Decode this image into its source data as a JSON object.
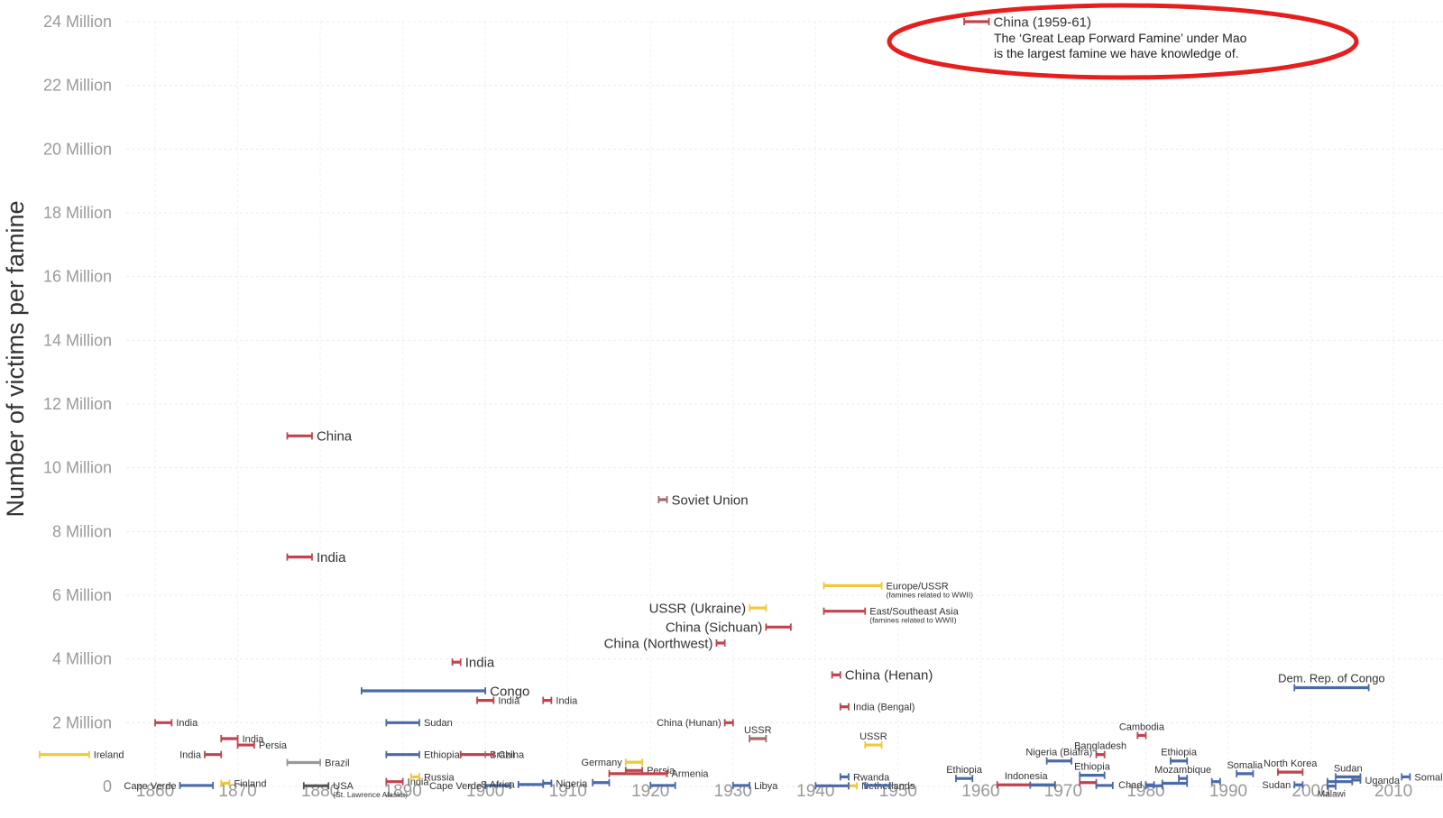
{
  "chart_data": {
    "type": "range",
    "title": "",
    "ylabel": "Number of victims per famine",
    "xlim": [
      1856.5,
      2016
    ],
    "ylim": [
      0,
      24
    ],
    "yticks": [
      {
        "value": 0,
        "label": "0"
      },
      {
        "value": 2,
        "label": "2 Million"
      },
      {
        "value": 4,
        "label": "4 Million"
      },
      {
        "value": 6,
        "label": "6 Million"
      },
      {
        "value": 8,
        "label": "8 Million"
      },
      {
        "value": 10,
        "label": "10 Million"
      },
      {
        "value": 12,
        "label": "12 Million"
      },
      {
        "value": 14,
        "label": "14 Million"
      },
      {
        "value": 16,
        "label": "16 Million"
      },
      {
        "value": 18,
        "label": "18 Million"
      },
      {
        "value": 20,
        "label": "20 Million"
      },
      {
        "value": 22,
        "label": "22 Million"
      },
      {
        "value": 24,
        "label": "24 Million"
      }
    ],
    "xticks": [
      "1860",
      "1870",
      "1880",
      "1890",
      "1900",
      "1910",
      "1920",
      "1930",
      "1940",
      "1950",
      "1960",
      "1970",
      "1980",
      "1990",
      "2000",
      "2010"
    ],
    "grid": true,
    "colors": {
      "red": "#c0444f",
      "blue": "#4a6aa8",
      "yellow": "#f0c93a",
      "gray": "#999999",
      "dark": "#555555",
      "brown": "#a36a6a"
    },
    "famines": [
      {
        "label": "Ireland",
        "start": 1846,
        "end": 1852,
        "value": 1.0,
        "color": "yellow",
        "size": 11
      },
      {
        "label": "India",
        "start": 1860,
        "end": 1862,
        "value": 2.0,
        "color": "red",
        "size": 11
      },
      {
        "label": "India",
        "start": 1868,
        "end": 1870,
        "value": 1.5,
        "color": "red",
        "size": 11
      },
      {
        "label": "Persia",
        "start": 1870,
        "end": 1872,
        "value": 1.3,
        "color": "red",
        "size": 11
      },
      {
        "label": "India",
        "start": 1866,
        "end": 1868,
        "value": 1.0,
        "color": "red",
        "size": 11,
        "anchor": "end"
      },
      {
        "label": "Cape Verde",
        "start": 1863,
        "end": 1867,
        "value": 0.03,
        "color": "blue",
        "size": 11,
        "anchor": "end"
      },
      {
        "label": "Finland",
        "start": 1868,
        "end": 1869,
        "value": 0.1,
        "color": "yellow",
        "size": 11
      },
      {
        "label": "China",
        "start": 1876,
        "end": 1879,
        "value": 11.0,
        "color": "red",
        "size": 15
      },
      {
        "label": "India",
        "start": 1876,
        "end": 1879,
        "value": 7.2,
        "color": "red",
        "size": 15
      },
      {
        "label": "Brazil",
        "start": 1876,
        "end": 1880,
        "value": 0.75,
        "color": "gray",
        "size": 11
      },
      {
        "label": "USA",
        "sublabel": "(St. Lawrence Alaska)",
        "start": 1878,
        "end": 1881,
        "value": 0.02,
        "color": "dark",
        "size": 11
      },
      {
        "label": "Congo",
        "start": 1885,
        "end": 1900,
        "value": 3.0,
        "color": "blue",
        "size": 15
      },
      {
        "label": "Sudan",
        "start": 1888,
        "end": 1892,
        "value": 2.0,
        "color": "blue",
        "size": 11
      },
      {
        "label": "Ethiopia",
        "start": 1888,
        "end": 1892,
        "value": 1.0,
        "color": "blue",
        "size": 11
      },
      {
        "label": "India",
        "start": 1888,
        "end": 1890,
        "value": 0.15,
        "color": "red",
        "size": 11
      },
      {
        "label": "Russia",
        "start": 1891,
        "end": 1892,
        "value": 0.3,
        "color": "yellow",
        "size": 11
      },
      {
        "label": "India",
        "start": 1896,
        "end": 1897,
        "value": 3.9,
        "color": "red",
        "size": 15
      },
      {
        "label": "Brazil",
        "start": 1897,
        "end": 1900,
        "value": 1.0,
        "color": "gray",
        "size": 11
      },
      {
        "label": "China",
        "start": 1897,
        "end": 1901,
        "value": 1.0,
        "color": "red",
        "size": 11
      },
      {
        "label": "India",
        "start": 1899,
        "end": 1901,
        "value": 2.7,
        "color": "red",
        "size": 11
      },
      {
        "label": "India",
        "start": 1907,
        "end": 1908,
        "value": 2.7,
        "color": "red",
        "size": 11
      },
      {
        "label": "Cape Verde",
        "start": 1900,
        "end": 1903,
        "value": 0.03,
        "color": "blue",
        "size": 11,
        "anchor": "end"
      },
      {
        "label": "S Africa",
        "start": 1904,
        "end": 1907,
        "value": 0.06,
        "color": "blue",
        "size": 11,
        "anchor": "end"
      },
      {
        "label": "Nigeria",
        "start": 1907,
        "end": 1908,
        "value": 0.1,
        "color": "blue",
        "size": 11
      },
      {
        "label": "Soviet Union",
        "start": 1921,
        "end": 1922,
        "value": 9.0,
        "color": "brown",
        "size": 15
      },
      {
        "label": "Germany",
        "start": 1917,
        "end": 1919,
        "value": 0.76,
        "color": "yellow",
        "size": 11,
        "anchor": "end"
      },
      {
        "label": "Persia",
        "start": 1917,
        "end": 1919,
        "value": 0.5,
        "color": "red",
        "size": 11
      },
      {
        "label": "Armenia",
        "start": 1915,
        "end": 1922,
        "value": 0.4,
        "color": "red",
        "size": 11
      },
      {
        "label": "",
        "start": 1913,
        "end": 1915,
        "value": 0.12,
        "color": "blue",
        "size": 11
      },
      {
        "label": "",
        "start": 1920,
        "end": 1923,
        "value": 0.03,
        "color": "blue",
        "size": 11
      },
      {
        "label": "China (Northwest)",
        "start": 1928,
        "end": 1929,
        "value": 4.5,
        "color": "red",
        "size": 15,
        "anchor": "end"
      },
      {
        "label": "China (Hunan)",
        "start": 1929,
        "end": 1930,
        "value": 2.0,
        "color": "red",
        "size": 11,
        "anchor": "end"
      },
      {
        "label": "USSR",
        "start": 1932,
        "end": 1934,
        "value": 1.5,
        "color": "brown",
        "size": 11,
        "anchor": "above"
      },
      {
        "label": "USSR (Ukraine)",
        "start": 1932,
        "end": 1934,
        "value": 5.6,
        "color": "yellow",
        "size": 15,
        "anchor": "end"
      },
      {
        "label": "China (Sichuan)",
        "start": 1934,
        "end": 1937,
        "value": 5.0,
        "color": "red",
        "size": 15,
        "anchor": "end"
      },
      {
        "label": "Libya",
        "start": 1930,
        "end": 1932,
        "value": 0.03,
        "color": "blue",
        "size": 11
      },
      {
        "label": "Europe/USSR",
        "sublabel": "(famines related to WWII)",
        "start": 1941,
        "end": 1948,
        "value": 6.3,
        "color": "yellow",
        "size": 11
      },
      {
        "label": "East/Southeast Asia",
        "sublabel": "(famines related to WWII)",
        "start": 1941,
        "end": 1946,
        "value": 5.5,
        "color": "red",
        "size": 11
      },
      {
        "label": "China (Henan)",
        "start": 1942,
        "end": 1943,
        "value": 3.5,
        "color": "red",
        "size": 15
      },
      {
        "label": "India (Bengal)",
        "start": 1943,
        "end": 1944,
        "value": 2.5,
        "color": "red",
        "size": 11
      },
      {
        "label": "USSR",
        "start": 1946,
        "end": 1948,
        "value": 1.3,
        "color": "yellow",
        "size": 11,
        "anchor": "above"
      },
      {
        "label": "Rwanda",
        "start": 1943,
        "end": 1944,
        "value": 0.3,
        "color": "blue",
        "size": 11
      },
      {
        "label": "Netherlands",
        "start": 1944,
        "end": 1945,
        "value": 0.02,
        "color": "yellow",
        "size": 11
      },
      {
        "label": "",
        "start": 1940,
        "end": 1944,
        "value": 0.02,
        "color": "blue",
        "size": 11
      },
      {
        "label": "",
        "start": 1946,
        "end": 1949,
        "value": 0.03,
        "color": "blue",
        "size": 11
      },
      {
        "label": "China (1959-61)",
        "start": 1958,
        "end": 1961,
        "value": 24.0,
        "color": "red",
        "size": 15
      },
      {
        "label": "Ethiopia",
        "start": 1957,
        "end": 1959,
        "value": 0.25,
        "color": "blue",
        "size": 11,
        "anchor": "above"
      },
      {
        "label": "Indonesia",
        "start": 1962,
        "end": 1969,
        "value": 0.05,
        "color": "red",
        "size": 11,
        "anchor": "above"
      },
      {
        "label": "",
        "start": 1966,
        "end": 1969,
        "value": 0.04,
        "color": "blue",
        "size": 11
      },
      {
        "label": "Nigeria (Biafra)",
        "start": 1968,
        "end": 1971,
        "value": 0.8,
        "color": "blue",
        "size": 11,
        "anchor": "above"
      },
      {
        "label": "Ethiopia",
        "start": 1972,
        "end": 1975,
        "value": 0.35,
        "color": "blue",
        "size": 11,
        "anchor": "above"
      },
      {
        "label": "",
        "start": 1972,
        "end": 1974,
        "value": 0.12,
        "color": "red",
        "size": 11
      },
      {
        "label": "Bangladesh",
        "start": 1974,
        "end": 1975,
        "value": 1.0,
        "color": "red",
        "size": 11,
        "anchor": "above"
      },
      {
        "label": "",
        "start": 1974,
        "end": 1976,
        "value": 0.03,
        "color": "blue",
        "size": 11
      },
      {
        "label": "Cambodia",
        "start": 1979,
        "end": 1980,
        "value": 1.6,
        "color": "red",
        "size": 11,
        "anchor": "above"
      },
      {
        "label": "Chad",
        "start": 1980,
        "end": 1981,
        "value": 0.05,
        "color": "blue",
        "size": 11,
        "anchor": "end"
      },
      {
        "label": "",
        "start": 1980,
        "end": 1982,
        "value": 0.02,
        "color": "blue",
        "size": 11
      },
      {
        "label": "Ethiopia",
        "start": 1983,
        "end": 1985,
        "value": 0.8,
        "color": "blue",
        "size": 11,
        "anchor": "above"
      },
      {
        "label": "Mozambique",
        "start": 1984,
        "end": 1985,
        "value": 0.25,
        "color": "blue",
        "size": 11,
        "anchor": "above"
      },
      {
        "label": "",
        "start": 1982,
        "end": 1985,
        "value": 0.1,
        "color": "blue",
        "size": 11
      },
      {
        "label": "",
        "start": 1988,
        "end": 1989,
        "value": 0.15,
        "color": "blue",
        "size": 11
      },
      {
        "label": "Somalia",
        "start": 1991,
        "end": 1993,
        "value": 0.4,
        "color": "blue",
        "size": 11,
        "anchor": "above"
      },
      {
        "label": "North Korea",
        "start": 1996,
        "end": 1999,
        "value": 0.45,
        "color": "red",
        "size": 11,
        "anchor": "above"
      },
      {
        "label": "Sudan",
        "start": 1998,
        "end": 1999,
        "value": 0.05,
        "color": "blue",
        "size": 11,
        "anchor": "end"
      },
      {
        "label": "Dem. Rep. of Congo",
        "start": 1998,
        "end": 2007,
        "value": 3.1,
        "color": "blue",
        "size": 13,
        "anchor": "above"
      },
      {
        "label": "Sudan",
        "start": 2003,
        "end": 2006,
        "value": 0.3,
        "color": "blue",
        "size": 11,
        "anchor": "above"
      },
      {
        "label": "Malawi",
        "start": 2002,
        "end": 2003,
        "value": 0.01,
        "color": "blue",
        "size": 10,
        "anchor": "below"
      },
      {
        "label": "",
        "start": 2002,
        "end": 2005,
        "value": 0.15,
        "color": "blue",
        "size": 11
      },
      {
        "label": "Uganda",
        "start": 2005,
        "end": 2006,
        "value": 0.2,
        "color": "blue",
        "size": 11
      },
      {
        "label": "Somalia",
        "start": 2011,
        "end": 2012,
        "value": 0.3,
        "color": "blue",
        "size": 11
      }
    ],
    "annotation": {
      "lines": [
        "China (1959-61)",
        "The ‘Great Leap Forward Famine’ under Mao",
        "is the largest famine we have knowledge of."
      ],
      "highlight_color": "#e61e1e"
    }
  }
}
